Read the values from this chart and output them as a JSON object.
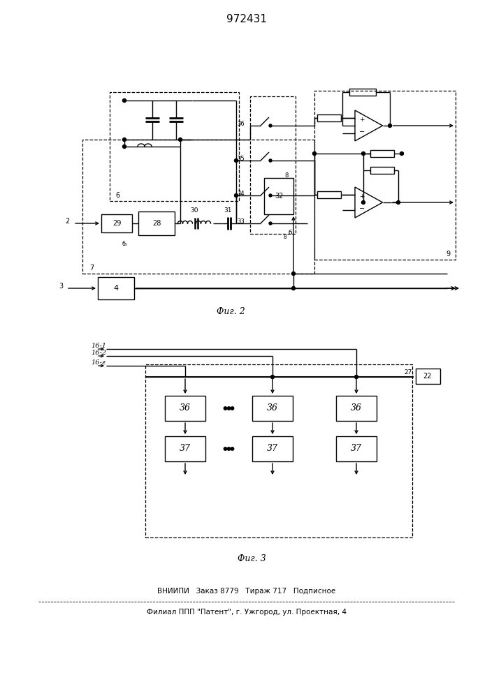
{
  "title": "972431",
  "fig2_label": "Фиг. 2",
  "fig3_label": "Фиг. 3",
  "footer_line1": "ВНИИПИ   Заказ 8779   Тираж 717   Подписное",
  "footer_line2": "Филиал ППП \"Патент\", г. Ужгород, ул. Проектная, 4",
  "bg_color": "#ffffff"
}
